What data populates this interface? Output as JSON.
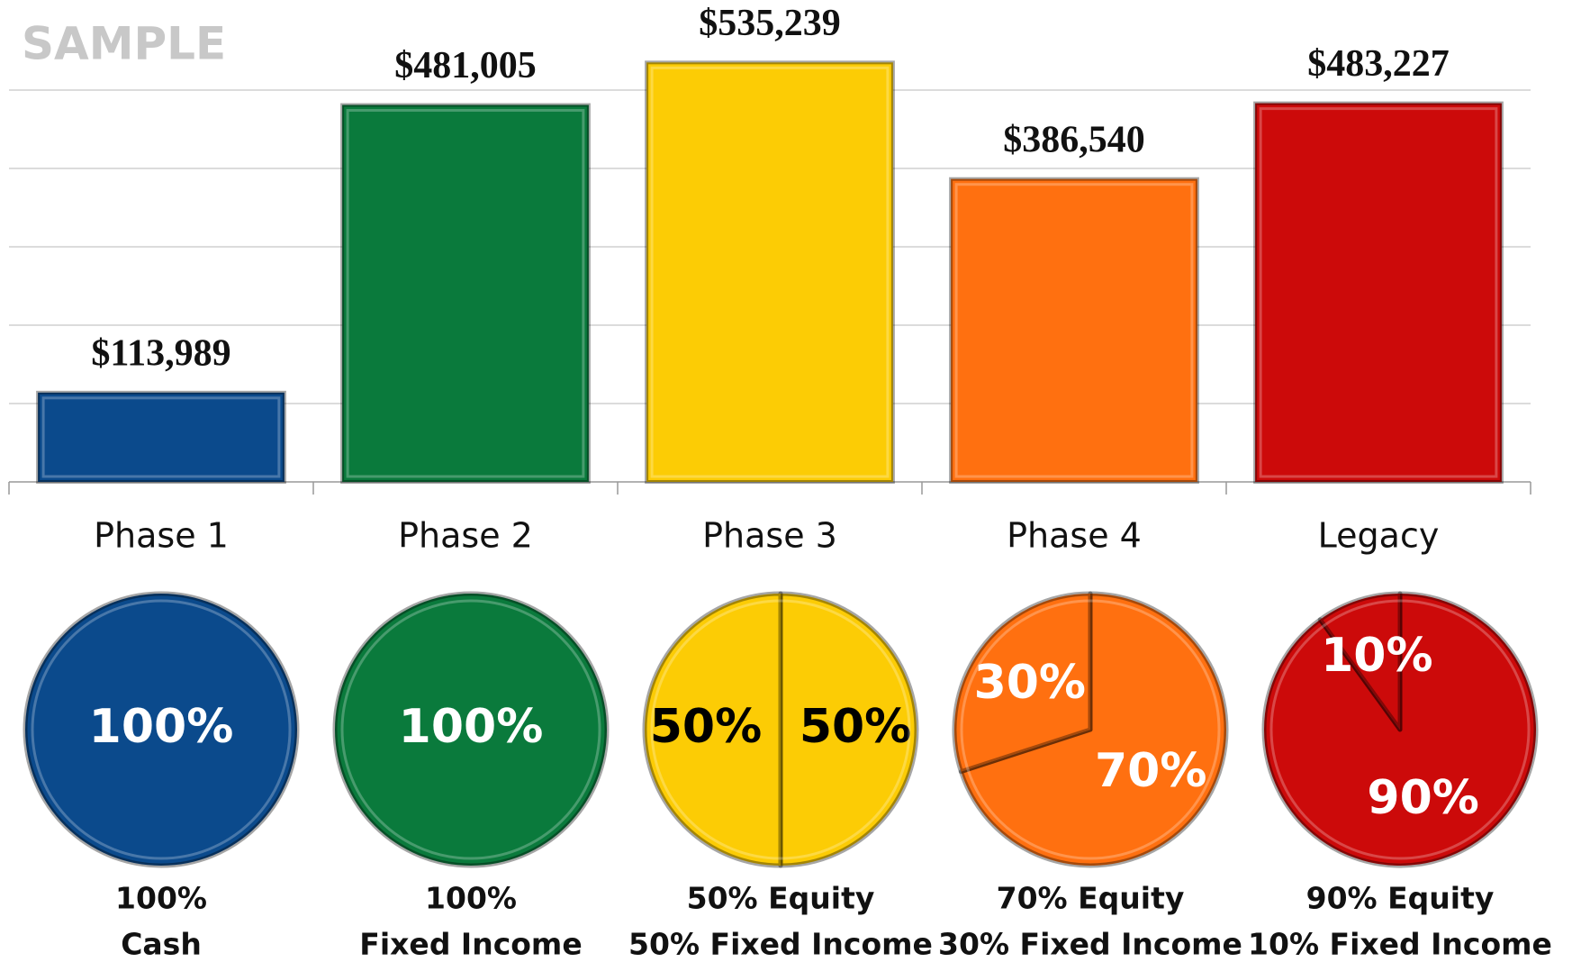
{
  "chart_data": [
    {
      "type": "bar",
      "annotation": "SAMPLE",
      "categories": [
        "Phase 1",
        "Phase 2",
        "Phase 3",
        "Phase 4",
        "Legacy"
      ],
      "values": [
        113989,
        481005,
        535239,
        386540,
        483227
      ],
      "value_labels": [
        "$113,989",
        "$481,005",
        "$535,239",
        "$386,540",
        "$483,227"
      ],
      "colors": [
        "#0b4a8c",
        "#0a7a3c",
        "#fccc05",
        "#ff7010",
        "#cc0a0a"
      ],
      "ylim": [
        0,
        600000
      ],
      "yticks": [
        0,
        100000,
        200000,
        300000,
        400000,
        500000
      ],
      "grid": true
    },
    {
      "type": "pie",
      "values": [
        100
      ],
      "value_labels": [
        "100%"
      ],
      "color": "#0b4a8c",
      "label_color": "#ffffff",
      "caption": [
        "100%",
        "Cash"
      ]
    },
    {
      "type": "pie",
      "values": [
        100
      ],
      "value_labels": [
        "100%"
      ],
      "color": "#0a7a3c",
      "label_color": "#ffffff",
      "caption": [
        "100%",
        "Fixed Income"
      ]
    },
    {
      "type": "pie",
      "values": [
        50,
        50
      ],
      "value_labels": [
        "50%",
        "50%"
      ],
      "color": "#fccc05",
      "label_color": "#000000",
      "caption": [
        "50% Equity",
        "50% Fixed Income"
      ]
    },
    {
      "type": "pie",
      "values": [
        70,
        30
      ],
      "value_labels": [
        "70%",
        "30%"
      ],
      "color": "#ff7010",
      "label_color": "#ffffff",
      "caption": [
        "70% Equity",
        "30% Fixed Income"
      ]
    },
    {
      "type": "pie",
      "values": [
        90,
        10
      ],
      "value_labels": [
        "90%",
        "10%"
      ],
      "color": "#cc0a0a",
      "label_color": "#ffffff",
      "caption": [
        "90% Equity",
        "10% Fixed Income"
      ]
    }
  ]
}
